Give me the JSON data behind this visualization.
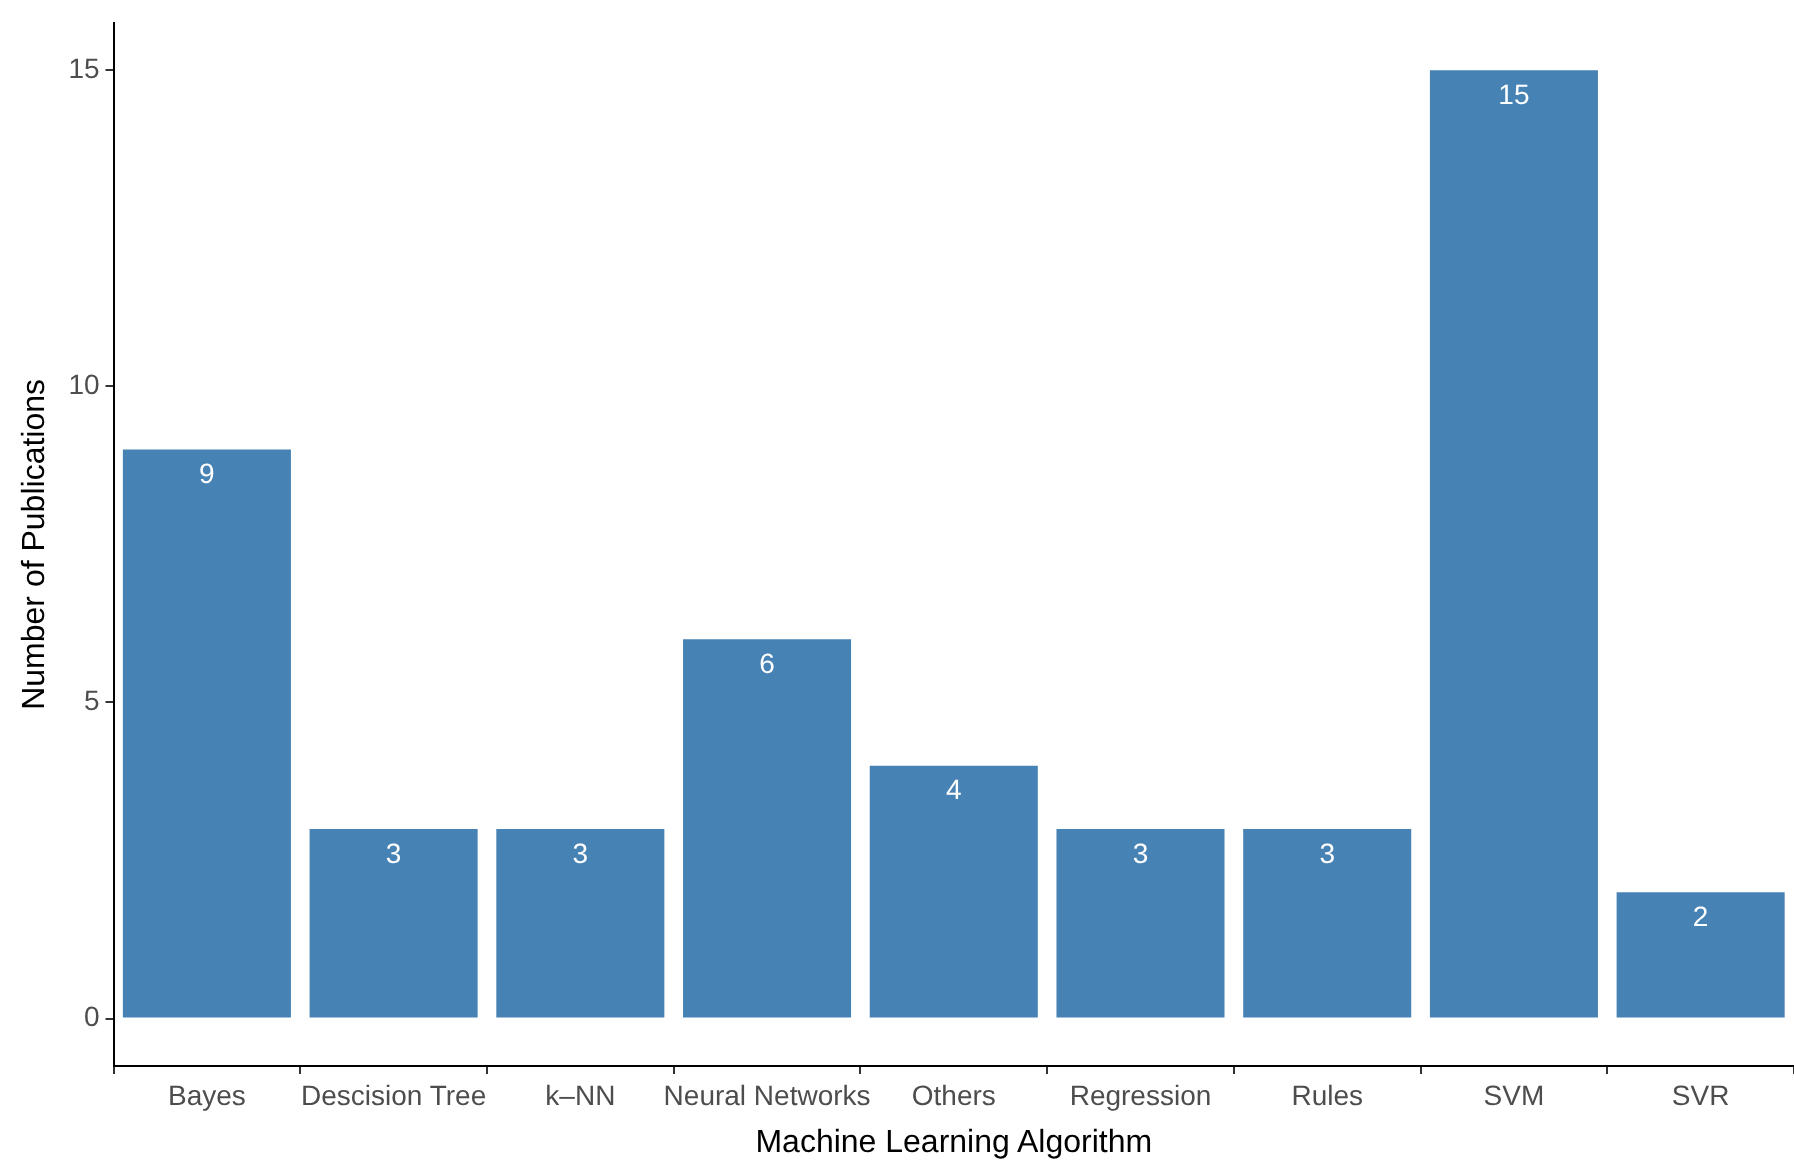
{
  "chart_data": {
    "type": "bar",
    "xlabel": "Machine Learning Algorithm",
    "ylabel": "Number of Publications",
    "categories": [
      "Bayes",
      "Descision Tree",
      "k–NN",
      "Neural Networks",
      "Others",
      "Regression",
      "Rules",
      "SVM",
      "SVR"
    ],
    "values": [
      9,
      3,
      3,
      6,
      4,
      3,
      3,
      15,
      2
    ],
    "color": "#4682b4",
    "ylim": [
      -0.75,
      15.75
    ],
    "yticks": [
      0,
      5,
      10,
      15
    ],
    "grid": false,
    "legend": false,
    "data_labels": true
  }
}
